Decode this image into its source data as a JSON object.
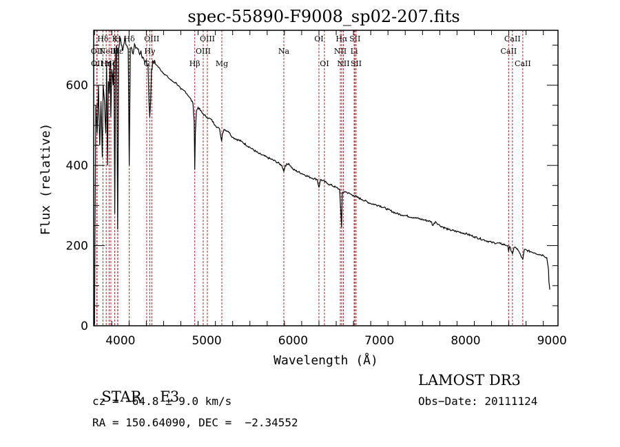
{
  "chart_data": {
    "type": "line",
    "title": "spec-55890-F9008_sp02-207.fits",
    "xlabel": "Wavelength (Å)",
    "ylabel": "Flux (relative)",
    "xlim": [
      3690,
      9070
    ],
    "ylim": [
      0,
      737
    ],
    "xticks": [
      4000,
      5000,
      6000,
      7000,
      8000,
      9000
    ],
    "yticks": [
      0,
      200,
      400,
      600
    ],
    "grid": false,
    "series": [
      {
        "name": "spectrum",
        "color": "#000000",
        "x": [
          3700,
          3705,
          3715,
          3730,
          3745,
          3760,
          3775,
          3790,
          3800,
          3815,
          3830,
          3840,
          3850,
          3860,
          3870,
          3880,
          3889,
          3900,
          3915,
          3925,
          3934,
          3945,
          3955,
          3968,
          3980,
          3995,
          4010,
          4030,
          4050,
          4070,
          4090,
          4102,
          4115,
          4140,
          4170,
          4200,
          4230,
          4260,
          4290,
          4320,
          4330,
          4340,
          4350,
          4360,
          4380,
          4420,
          4460,
          4500,
          4550,
          4600,
          4650,
          4700,
          4750,
          4800,
          4840,
          4855,
          4861,
          4868,
          4880,
          4900,
          4950,
          5000,
          5050,
          5100,
          5150,
          5172,
          5183,
          5200,
          5250,
          5300,
          5400,
          5500,
          5600,
          5700,
          5800,
          5870,
          5893,
          5910,
          5950,
          6000,
          6100,
          6200,
          6280,
          6300,
          6320,
          6400,
          6500,
          6540,
          6563,
          6570,
          6600,
          6700,
          6800,
          6900,
          7000,
          7100,
          7200,
          7300,
          7400,
          7500,
          7600,
          7620,
          7650,
          7700,
          7800,
          7900,
          8000,
          8100,
          8200,
          8300,
          8400,
          8490,
          8498,
          8510,
          8542,
          8560,
          8600,
          8662,
          8680,
          8750,
          8800,
          8850,
          8900,
          8940,
          8960,
          8965,
          8970,
          8975
        ],
        "values": [
          5,
          220,
          550,
          480,
          600,
          450,
          560,
          420,
          600,
          560,
          480,
          650,
          400,
          610,
          580,
          660,
          520,
          640,
          600,
          660,
          280,
          680,
          700,
          240,
          690,
          720,
          700,
          690,
          720,
          700,
          690,
          400,
          690,
          680,
          700,
          690,
          680,
          670,
          660,
          650,
          560,
          520,
          560,
          640,
          660,
          650,
          640,
          630,
          620,
          610,
          605,
          590,
          585,
          570,
          555,
          510,
          390,
          480,
          535,
          545,
          530,
          520,
          515,
          500,
          490,
          460,
          480,
          490,
          485,
          470,
          460,
          445,
          430,
          420,
          410,
          400,
          385,
          400,
          405,
          390,
          380,
          370,
          365,
          345,
          365,
          355,
          345,
          340,
          245,
          330,
          335,
          325,
          315,
          305,
          300,
          290,
          280,
          275,
          270,
          265,
          260,
          250,
          260,
          250,
          240,
          235,
          230,
          222,
          215,
          208,
          205,
          200,
          185,
          198,
          180,
          195,
          192,
          165,
          190,
          185,
          182,
          178,
          176,
          170,
          140,
          110,
          100,
          90
        ]
      }
    ],
    "line_markers": [
      {
        "label": "Hδ",
        "wavelength": 3797,
        "row": 0
      },
      {
        "label": "K",
        "wavelength": 3934,
        "row": 0
      },
      {
        "label": "H",
        "wavelength": 3968,
        "row": 0
      },
      {
        "label": "Hδ",
        "wavelength": 4102,
        "row": 0
      },
      {
        "label": "OIII",
        "wavelength": 4363,
        "row": 0
      },
      {
        "label": "OII",
        "wavelength": 3727,
        "row": 1
      },
      {
        "label": "NeIII",
        "wavelength": 3869,
        "row": 1
      },
      {
        "label": "Hε",
        "wavelength": 3970,
        "row": 1
      },
      {
        "label": "Hγ",
        "wavelength": 4340,
        "row": 1
      },
      {
        "label": "OII",
        "wavelength": 3729,
        "row": 2
      },
      {
        "label": "Hη",
        "wavelength": 3835,
        "row": 2
      },
      {
        "label": "Hζ",
        "wavelength": 3889,
        "row": 2
      },
      {
        "label": "G",
        "wavelength": 4304,
        "row": 2
      },
      {
        "label": "OIII",
        "wavelength": 5007,
        "row": 0
      },
      {
        "label": "OIII",
        "wavelength": 4959,
        "row": 1
      },
      {
        "label": "Hβ",
        "wavelength": 4861,
        "row": 2
      },
      {
        "label": "Mg",
        "wavelength": 5175,
        "row": 2
      },
      {
        "label": "Na",
        "wavelength": 5893,
        "row": 1
      },
      {
        "label": "OI",
        "wavelength": 6300,
        "row": 0
      },
      {
        "label": "OI",
        "wavelength": 6364,
        "row": 2
      },
      {
        "label": "Hα",
        "wavelength": 6563,
        "row": 0
      },
      {
        "label": "SII",
        "wavelength": 6717,
        "row": 0
      },
      {
        "label": "NII",
        "wavelength": 6548,
        "row": 1
      },
      {
        "label": "Li",
        "wavelength": 6708,
        "row": 1
      },
      {
        "label": "NII",
        "wavelength": 6583,
        "row": 2
      },
      {
        "label": "SII",
        "wavelength": 6731,
        "row": 2
      },
      {
        "label": "CaII",
        "wavelength": 8542,
        "row": 0
      },
      {
        "label": "CaII",
        "wavelength": 8498,
        "row": 1
      },
      {
        "label": "CaII",
        "wavelength": 8662,
        "row": 2
      }
    ],
    "marker_color": "#a52a2a"
  },
  "info": {
    "object_type": "STAR",
    "subclass": "F3",
    "redshift_line": "cz = −64.8 ± 9.0 km/s",
    "coords_line": "RA = 150.64090, DEC =  −2.34552",
    "survey": "LAMOST DR3",
    "obs_date": "Obs−Date: 20111124"
  }
}
